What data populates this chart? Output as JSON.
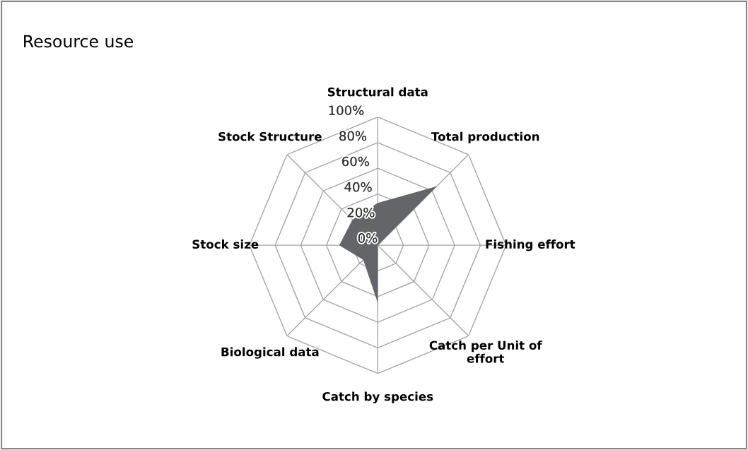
{
  "chart_data": {
    "type": "radar",
    "title": "Resource use",
    "categories": [
      "Structural data",
      "Total production",
      "Fishing effort",
      "Catch per Unit of\neffort",
      "Catch by species",
      "Biological data",
      "Stock size",
      "Stock Structure"
    ],
    "series": [
      {
        "color": "#646569",
        "values": [
          33,
          65,
          0,
          0,
          45,
          16,
          30,
          28
        ]
      }
    ],
    "ylim": [
      0,
      100
    ],
    "yticks": [
      {
        "value": 0,
        "label": "0%"
      },
      {
        "value": 20,
        "label": "20%"
      },
      {
        "value": 40,
        "label": "40%"
      },
      {
        "value": 60,
        "label": "60%"
      },
      {
        "value": 80,
        "label": "80%"
      },
      {
        "value": 100,
        "label": "100%"
      }
    ],
    "grid": true,
    "legend": false,
    "marker": "none"
  }
}
